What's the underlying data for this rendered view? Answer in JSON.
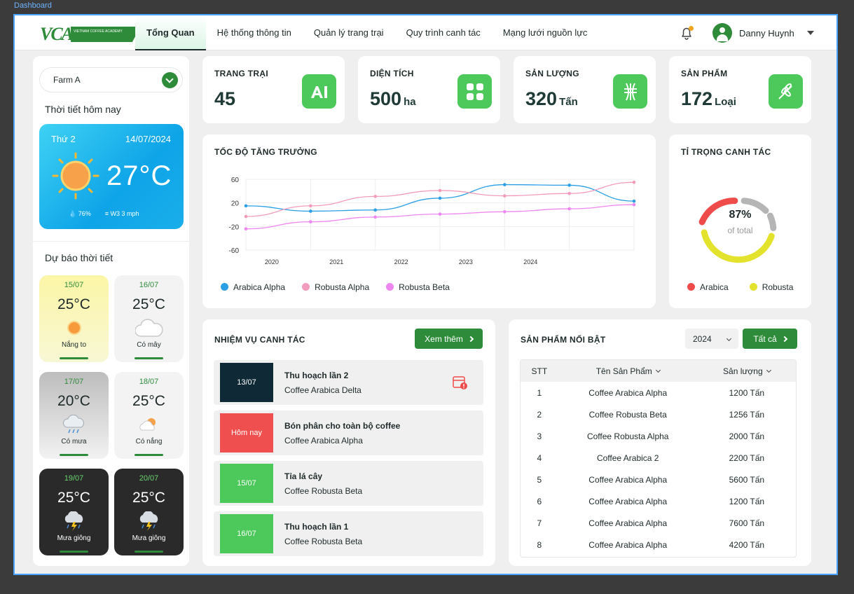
{
  "frame_label": "Dashboard",
  "logo": {
    "text": "VCA",
    "tagline": "VIETNAM COFFEE ACADEMY"
  },
  "nav": [
    "Tổng Quan",
    "Hệ thống thông tin",
    "Quản lý trang trại",
    "Quy trình canh tác",
    "Mạng lưới nguồn lực"
  ],
  "user": {
    "name": "Danny Huynh"
  },
  "sidebar": {
    "farm": "Farm A",
    "weather_title": "Thời tiết hôm nay",
    "today": {
      "day": "Thứ 2",
      "date": "14/07/2024",
      "temp": "27°C",
      "humidity": "76%",
      "wind": "W3 3 mph"
    },
    "forecast_title": "Dự báo thời tiết",
    "forecast": [
      {
        "date": "15/07",
        "temp": "25°C",
        "cond": "Nắng to"
      },
      {
        "date": "16/07",
        "temp": "25°C",
        "cond": "Có mây"
      },
      {
        "date": "17/07",
        "temp": "20°C",
        "cond": "Có mưa"
      },
      {
        "date": "18/07",
        "temp": "25°C",
        "cond": "Có nắng"
      },
      {
        "date": "19/07",
        "temp": "25°C",
        "cond": "Mưa giông"
      },
      {
        "date": "20/07",
        "temp": "25°C",
        "cond": "Mưa giông"
      }
    ]
  },
  "stats": [
    {
      "label": "TRANG TRẠI",
      "value": "45",
      "unit": ""
    },
    {
      "label": "DIỆN TÍCH",
      "value": "500",
      "unit": "ha"
    },
    {
      "label": "SẢN LƯỢNG",
      "value": "320",
      "unit": "Tấn"
    },
    {
      "label": "SẢN PHẨM",
      "value": "172",
      "unit": "Loại"
    }
  ],
  "growth": {
    "title": "TỐC ĐỘ TĂNG TRƯỞNG"
  },
  "ratio": {
    "title": "TỈ TRỌNG CANH TÁC",
    "percent": "87%",
    "caption": "of total",
    "legend": [
      "Arabica",
      "Robusta"
    ]
  },
  "chart_data": {
    "type": "line",
    "x": [
      2019.6,
      2020.6,
      2021.6,
      2022.6,
      2023.6,
      2024.6,
      2025.6
    ],
    "xticks": [
      "2020",
      "2021",
      "2022",
      "2023",
      "2024"
    ],
    "yticks": [
      "60",
      "20",
      "-20",
      "-60"
    ],
    "ylim": [
      -60,
      60
    ],
    "series": [
      {
        "name": "Arabica Alpha",
        "color": "#2a9fe6",
        "values": [
          15,
          6,
          8,
          28,
          51,
          50,
          23
        ]
      },
      {
        "name": "Robusta Alpha",
        "color": "#f29bbd",
        "values": [
          -3,
          15,
          31,
          41,
          32,
          36,
          55
        ]
      },
      {
        "name": "Robusta Beta",
        "color": "#ee86f0",
        "values": [
          -24,
          -12,
          -4,
          1,
          5,
          10,
          17
        ]
      }
    ]
  },
  "tasks": {
    "title": "NHIỆM VỤ CANH TÁC",
    "more": "Xem thêm",
    "items": [
      {
        "date": "13/07",
        "title": "Thu hoạch lần 2",
        "sub": "Coffee Arabica Delta"
      },
      {
        "date": "Hôm nay",
        "title": "Bón phân cho toàn bộ coffee",
        "sub": "Coffee Arabica Alpha"
      },
      {
        "date": "15/07",
        "title": "Tỉa lá cây",
        "sub": "Coffee Robusta Beta"
      },
      {
        "date": "16/07",
        "title": "Thu hoạch lần 1",
        "sub": "Coffee Robusta Beta"
      }
    ]
  },
  "products": {
    "title": "SẢN PHẨM NỔI BẬT",
    "year": "2024",
    "all": "Tất cả",
    "headers": [
      "STT",
      "Tên Sản Phẩm",
      "Sản lượng"
    ],
    "rows": [
      [
        "1",
        "Coffee Arabica Alpha",
        "1200 Tấn"
      ],
      [
        "2",
        "Coffee Robusta Beta",
        "1256 Tấn"
      ],
      [
        "3",
        "Coffee Robusta Alpha",
        "2000 Tấn"
      ],
      [
        "4",
        "Coffee Arabica 2",
        "2200 Tấn"
      ],
      [
        "5",
        "Coffee Arabica Alpha",
        "5600 Tấn"
      ],
      [
        "6",
        "Coffee Arabica Alpha",
        "1200 Tấn"
      ],
      [
        "7",
        "Coffee Arabica Alpha",
        "7600 Tấn"
      ],
      [
        "8",
        "Coffee Arabica Alpha",
        "4200 Tấn"
      ]
    ]
  }
}
